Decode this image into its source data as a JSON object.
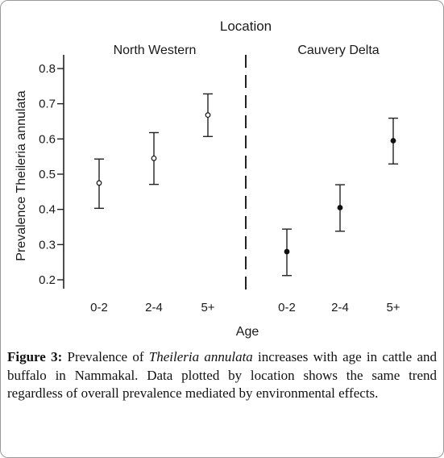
{
  "chart_data": {
    "type": "scatter",
    "title": "Location",
    "xlabel": "Age",
    "ylabel": "Prevalence Theileria annulata",
    "ylim": [
      0.2,
      0.8
    ],
    "yticks": [
      0.2,
      0.3,
      0.4,
      0.5,
      0.6,
      0.7,
      0.8
    ],
    "ytick_labels": [
      "0.2",
      "0.3",
      "0.4",
      "0.5",
      "0.6",
      "0.7",
      "0.8"
    ],
    "grid": false,
    "error_bars": true,
    "panels": [
      {
        "name": "North Western",
        "marker": "open-circle",
        "categories": [
          "0-2",
          "2-4",
          "5+"
        ],
        "values": [
          0.475,
          0.545,
          0.668
        ],
        "lower": [
          0.403,
          0.471,
          0.607
        ],
        "upper": [
          0.543,
          0.618,
          0.728
        ]
      },
      {
        "name": "Cauvery Delta",
        "marker": "filled-circle",
        "categories": [
          "0-2",
          "2-4",
          "5+"
        ],
        "values": [
          0.28,
          0.405,
          0.595
        ],
        "lower": [
          0.212,
          0.338,
          0.529
        ],
        "upper": [
          0.344,
          0.47,
          0.659
        ]
      }
    ]
  },
  "caption": {
    "label": "Figure 3:",
    "before": " Prevalence of ",
    "italic": "Theileria annulata",
    "after": " increases with age in cattle and buffalo in Nammakal. Data plotted by location shows the same trend regardless of overall prevalence mediated by environmental effects."
  }
}
